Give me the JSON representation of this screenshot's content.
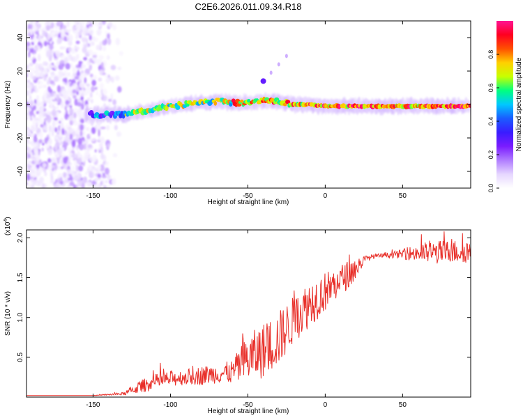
{
  "figure_title": "C2E6.2026.011.09.34.R18",
  "colors": {
    "snr_line": "#e8302a",
    "frame": "#000000",
    "cmap": [
      "#ffffff",
      "#e6d6ff",
      "#b07cff",
      "#7a1cff",
      "#3a1cff",
      "#1a5cff",
      "#00c8ff",
      "#00ff80",
      "#c8ff00",
      "#ffd000",
      "#ff5000",
      "#ff0020",
      "#ff1493"
    ]
  },
  "chart_data": [
    {
      "type": "heatmap",
      "title": "C2E6.2026.011.09.34.R18",
      "xlabel": "Height of straight line (km)",
      "ylabel": "Frequency (Hz)",
      "xlim": [
        -193,
        94
      ],
      "ylim": [
        -50,
        50
      ],
      "xticks": [
        -150,
        -100,
        -50,
        0,
        50
      ],
      "yticks": [
        -40,
        -20,
        0,
        20,
        40
      ],
      "colorbar": {
        "label": "Normalized spectral amplitude",
        "range": [
          0,
          1
        ],
        "ticks": [
          0.0,
          0.2,
          0.4,
          0.6,
          0.8
        ]
      },
      "ridge": {
        "description_points_km_hz": [
          [
            -150,
            -6
          ],
          [
            -130,
            -6
          ],
          [
            -110,
            -3
          ],
          [
            -100,
            -1
          ],
          [
            -90,
            0
          ],
          [
            -80,
            1
          ],
          [
            -70,
            2
          ],
          [
            -60,
            1
          ],
          [
            -50,
            1
          ],
          [
            -40,
            2
          ],
          [
            -30,
            2
          ],
          [
            -20,
            0
          ],
          [
            -10,
            0
          ],
          [
            0,
            -1
          ],
          [
            10,
            -1
          ],
          [
            30,
            -1
          ],
          [
            50,
            -1
          ],
          [
            70,
            -1
          ],
          [
            94,
            -1
          ]
        ],
        "branch_points_km_hz": [
          [
            -40,
            14
          ],
          [
            -35,
            19
          ],
          [
            -30,
            24
          ],
          [
            -25,
            29
          ]
        ]
      }
    },
    {
      "type": "line",
      "xlabel": "Height of straight line (km)",
      "ylabel": "SNR (10 * v/v)",
      "y_scale_label": "(x10",
      "y_scale_exp": "4",
      "xlim": [
        -193,
        94
      ],
      "ylim": [
        0,
        2.1
      ],
      "xticks": [
        -150,
        -100,
        -50,
        0,
        50
      ],
      "yticks": [
        0.5,
        1.0,
        1.5,
        2.0
      ],
      "ytick_labels": [
        "0.5",
        "1.0",
        "1.5",
        "2.0"
      ],
      "series": [
        {
          "name": "SNR",
          "envelope_x_km": [
            -193,
            -150,
            -130,
            -120,
            -110,
            -100,
            -90,
            -80,
            -70,
            -60,
            -50,
            -40,
            -30,
            -20,
            -10,
            0,
            10,
            20,
            25,
            30,
            40,
            50,
            60,
            70,
            80,
            94
          ],
          "envelope_y": [
            0.02,
            0.02,
            0.04,
            0.12,
            0.18,
            0.22,
            0.24,
            0.26,
            0.28,
            0.3,
            0.45,
            0.55,
            0.7,
            0.95,
            1.15,
            1.3,
            1.45,
            1.6,
            1.72,
            1.76,
            1.78,
            1.79,
            1.8,
            1.8,
            1.81,
            1.82
          ],
          "noise_amplitude": [
            0.0,
            0.0,
            0.02,
            0.08,
            0.1,
            0.1,
            0.1,
            0.12,
            0.12,
            0.15,
            0.3,
            0.35,
            0.35,
            0.3,
            0.3,
            0.25,
            0.2,
            0.15,
            0.05,
            0.03,
            0.03,
            0.06,
            0.12,
            0.15,
            0.15,
            0.15
          ]
        }
      ]
    }
  ]
}
